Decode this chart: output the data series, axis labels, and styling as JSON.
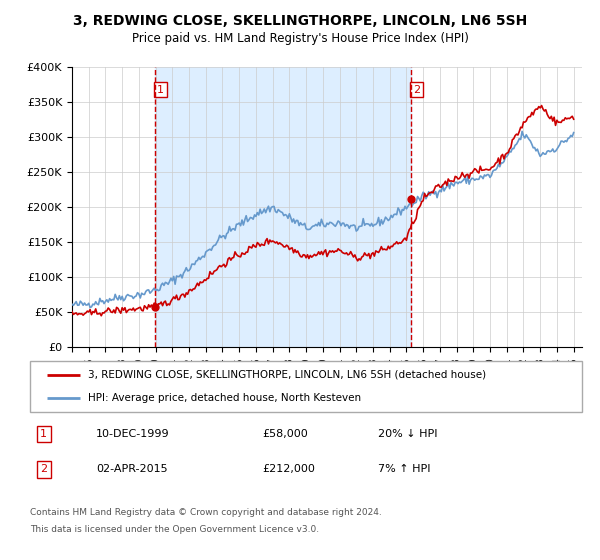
{
  "title": "3, REDWING CLOSE, SKELLINGTHORPE, LINCOLN, LN6 5SH",
  "subtitle": "Price paid vs. HM Land Registry's House Price Index (HPI)",
  "legend_line1": "3, REDWING CLOSE, SKELLINGTHORPE, LINCOLN, LN6 5SH (detached house)",
  "legend_line2": "HPI: Average price, detached house, North Kesteven",
  "annotation1_label": "1",
  "annotation1_date": "10-DEC-1999",
  "annotation1_price": "£58,000",
  "annotation1_hpi": "20% ↓ HPI",
  "annotation2_label": "2",
  "annotation2_date": "02-APR-2015",
  "annotation2_price": "£212,000",
  "annotation2_hpi": "7% ↑ HPI",
  "footer1": "Contains HM Land Registry data © Crown copyright and database right 2024.",
  "footer2": "This data is licensed under the Open Government Licence v3.0.",
  "red_color": "#cc0000",
  "blue_color": "#6699cc",
  "shaded_color": "#ddeeff",
  "grid_color": "#cccccc",
  "vline_color": "#cc0000",
  "background_color": "#ffffff",
  "ylim": [
    0,
    400000
  ],
  "xlim_start": 1995.0,
  "xlim_end": 2025.5,
  "sale1_x": 1999.94,
  "sale1_y": 58000,
  "sale2_x": 2015.25,
  "sale2_y": 212000,
  "vline1_x": 1999.94,
  "vline2_x": 2015.25,
  "hpi_anchors_x": [
    1995,
    1996,
    1997,
    1998,
    1999,
    2000,
    2001,
    2002,
    2003,
    2004,
    2005,
    2006,
    2007,
    2008,
    2009,
    2010,
    2011,
    2012,
    2013,
    2014,
    2015,
    2016,
    2017,
    2018,
    2019,
    2020,
    2021,
    2022,
    2023,
    2024,
    2025
  ],
  "hpi_anchors_y": [
    60000,
    62000,
    67000,
    72000,
    75000,
    82000,
    95000,
    112000,
    135000,
    158000,
    175000,
    190000,
    200000,
    185000,
    170000,
    175000,
    178000,
    170000,
    175000,
    185000,
    200000,
    215000,
    225000,
    235000,
    240000,
    245000,
    270000,
    305000,
    275000,
    285000,
    305000
  ],
  "red_anchors_x": [
    1995,
    1996,
    1997,
    1998,
    1999,
    2000,
    2001,
    2002,
    2003,
    2004,
    2005,
    2006,
    2007,
    2008,
    2009,
    2010,
    2011,
    2012,
    2013,
    2014,
    2015,
    2016,
    2017,
    2018,
    2019,
    2020,
    2021,
    2022,
    2023,
    2024,
    2025
  ],
  "red_anchors_y": [
    47000,
    48000,
    51000,
    53000,
    55000,
    58000,
    67000,
    80000,
    98000,
    118000,
    132000,
    145000,
    153000,
    142000,
    130000,
    135000,
    138000,
    128000,
    133000,
    143000,
    155000,
    212000,
    230000,
    243000,
    250000,
    255000,
    278000,
    320000,
    345000,
    320000,
    330000
  ]
}
